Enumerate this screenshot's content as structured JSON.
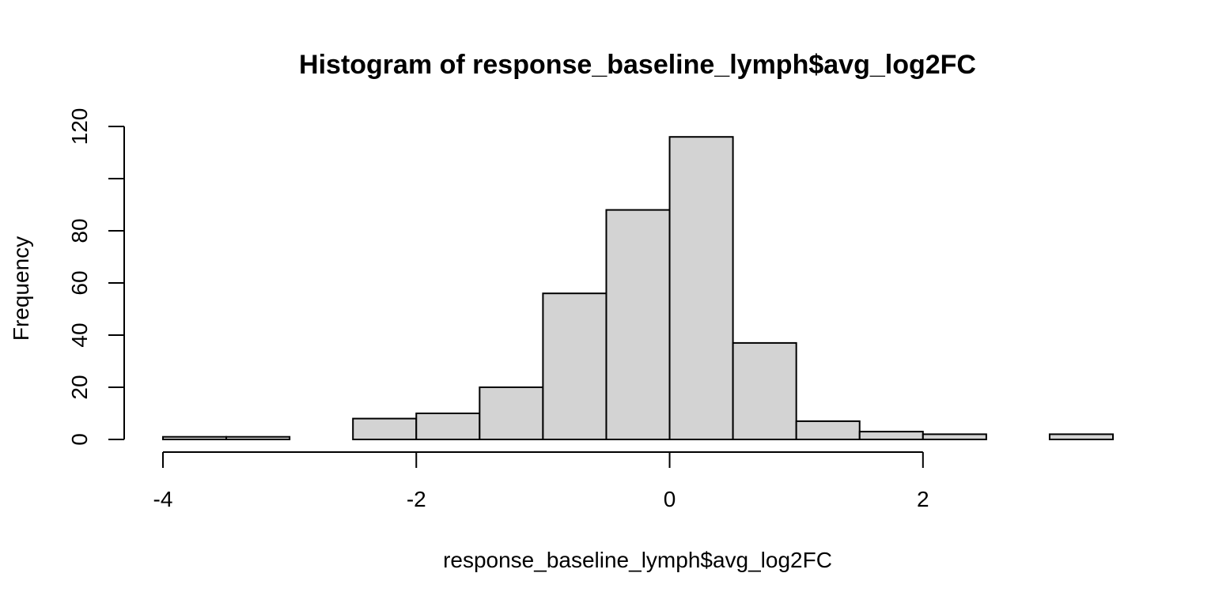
{
  "chart_data": {
    "type": "bar",
    "title": "Histogram of response_baseline_lymph$avg_log2FC",
    "xlabel": "response_baseline_lymph$avg_log2FC",
    "ylabel": "Frequency",
    "bin_edges": [
      -4,
      -3.5,
      -3,
      -2.5,
      -2,
      -1.5,
      -1,
      -0.5,
      0,
      0.5,
      1,
      1.5,
      2,
      2.5,
      3,
      3.5
    ],
    "values": [
      1,
      1,
      0,
      8,
      10,
      20,
      56,
      88,
      116,
      37,
      7,
      3,
      2,
      0,
      2
    ],
    "xlim": [
      -4,
      3.5
    ],
    "ylim": [
      0,
      120
    ],
    "x_ticks": [
      -4,
      -2,
      0,
      2
    ],
    "x_tick_labels": [
      "-4",
      "-2",
      "0",
      "2"
    ],
    "y_ticks": [
      0,
      20,
      40,
      60,
      80,
      100,
      120
    ],
    "y_tick_labels": [
      "0",
      "20",
      "40",
      "60",
      "80",
      "",
      "120"
    ],
    "bar_fill": "#d3d3d3",
    "bar_stroke": "#000000",
    "grid": false,
    "legend": "none"
  }
}
